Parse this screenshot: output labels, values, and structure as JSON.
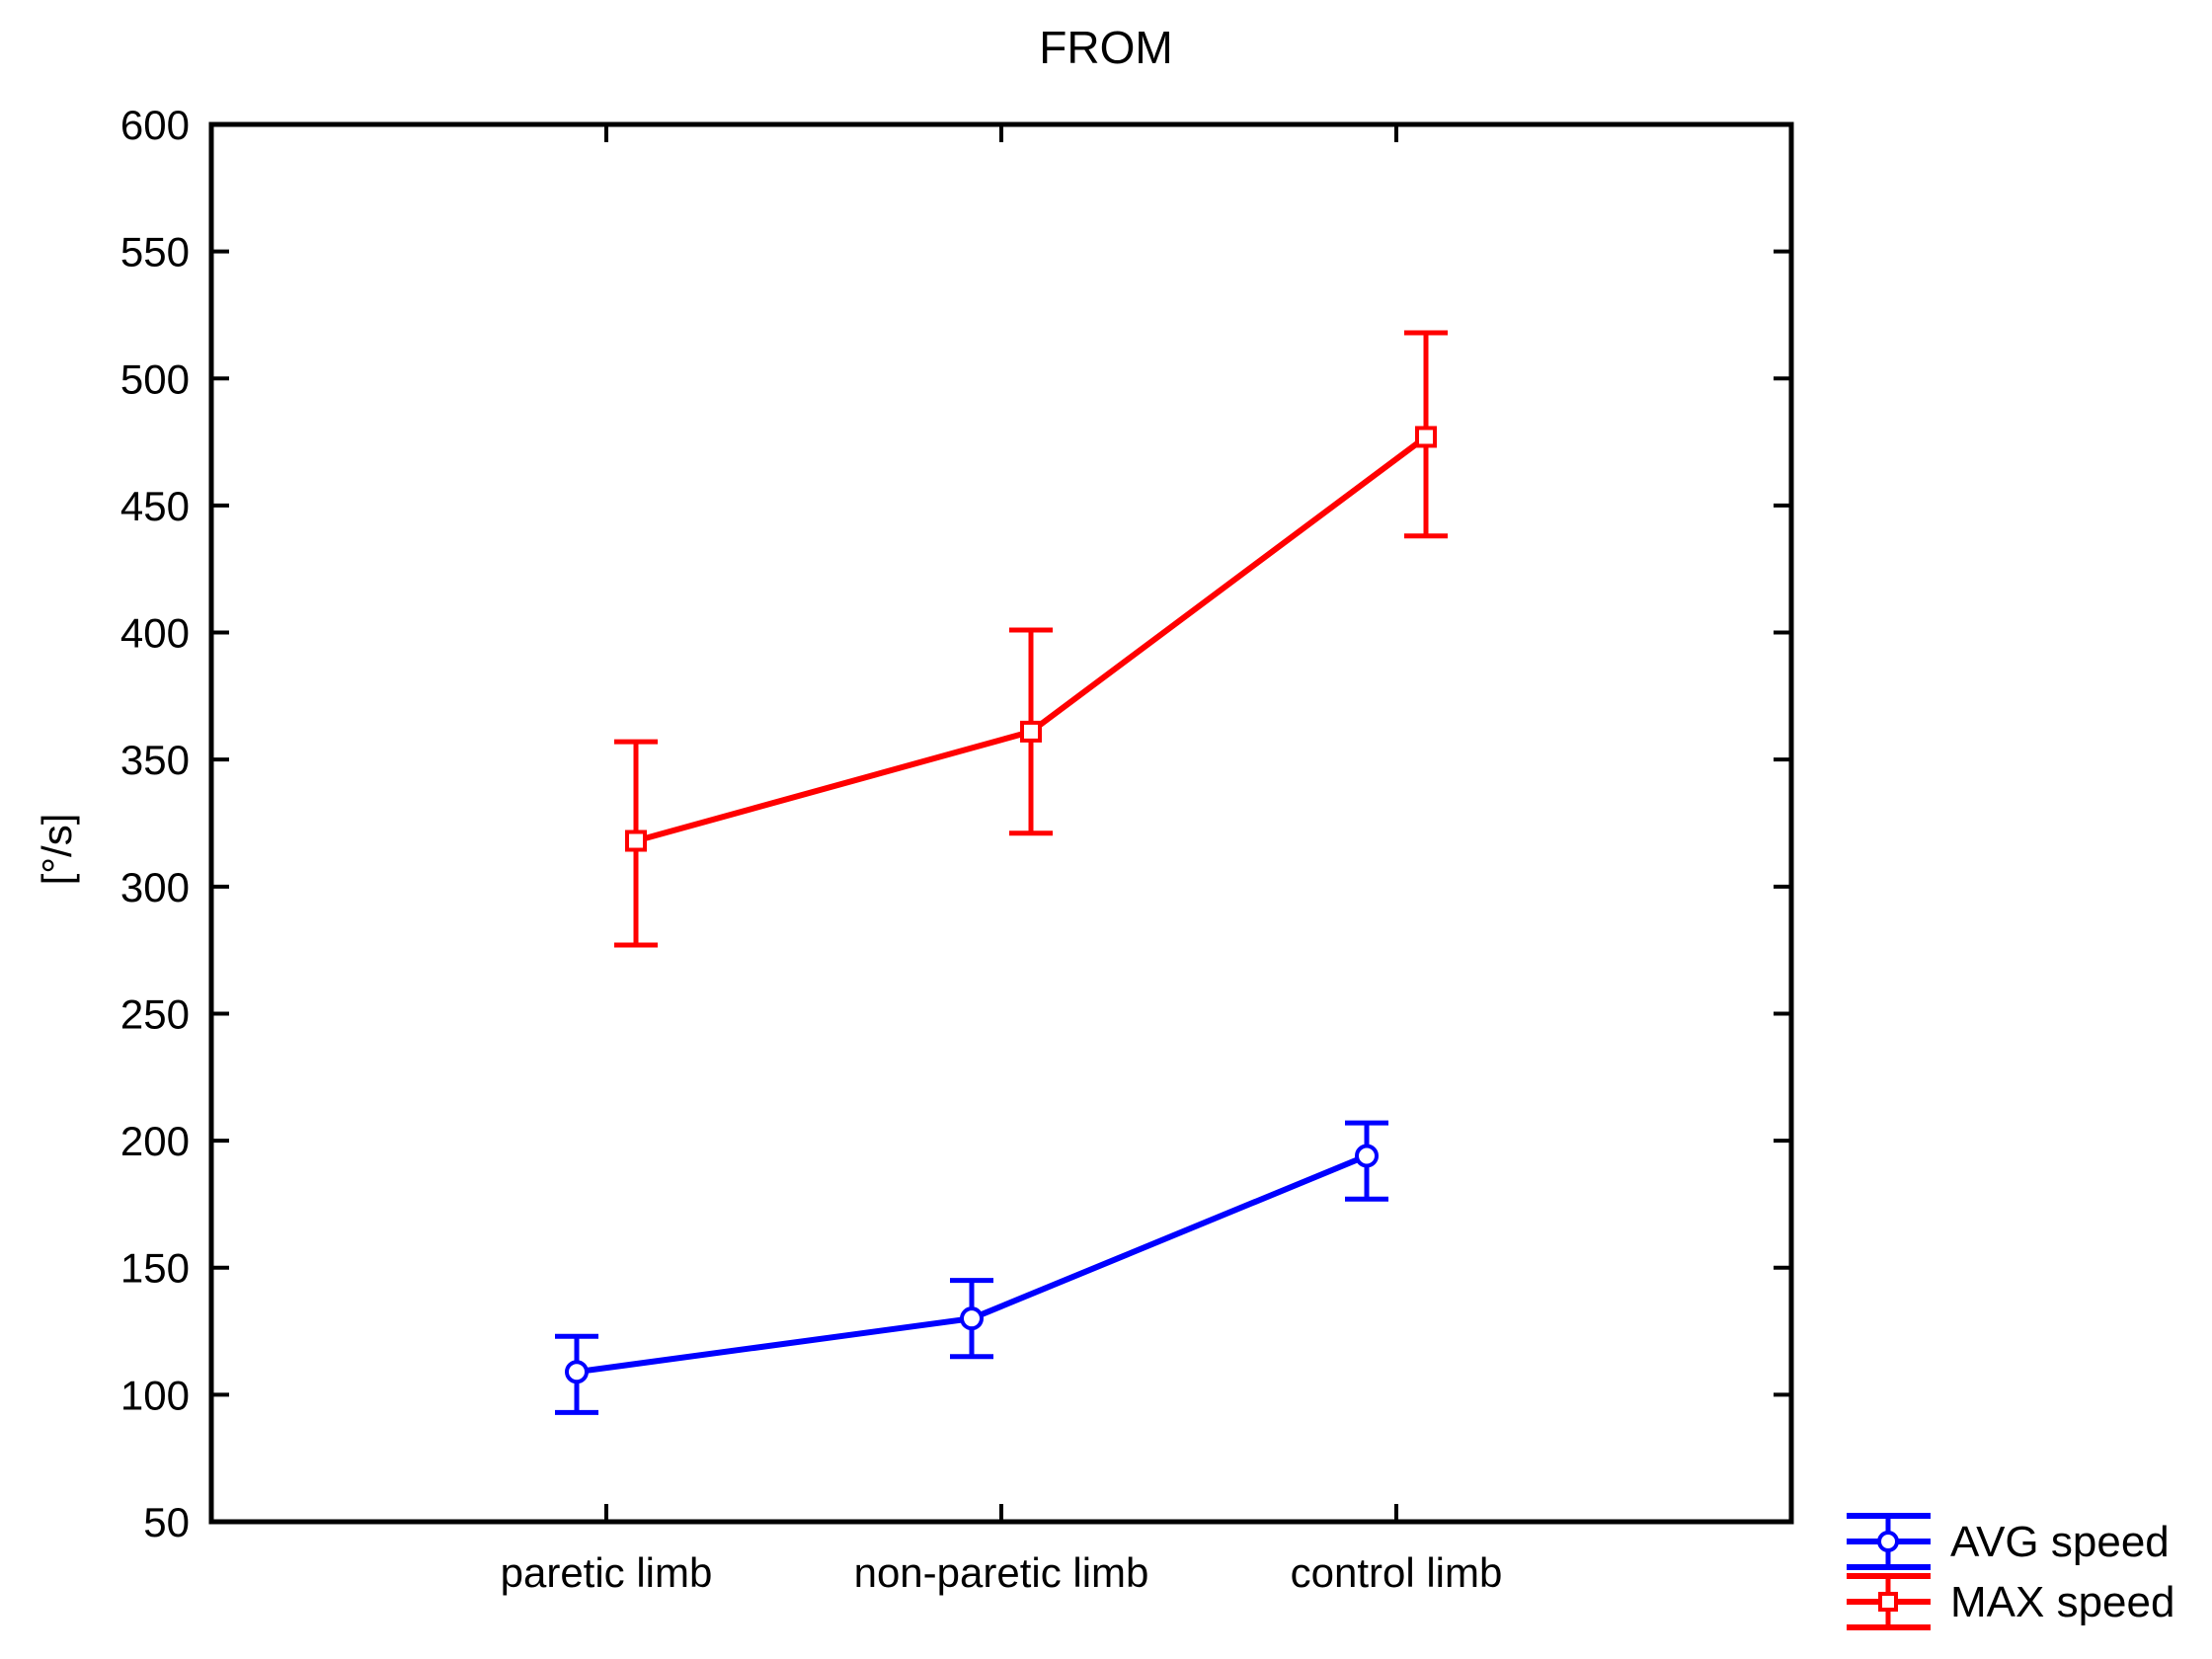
{
  "chart_data": {
    "type": "line",
    "title": "FROM",
    "xlabel": "",
    "ylabel": "[°/s]",
    "categories": [
      "paretic limb",
      "non-paretic limb",
      "control limb"
    ],
    "ylim": [
      50,
      600
    ],
    "yticks": [
      50,
      100,
      150,
      200,
      250,
      300,
      350,
      400,
      450,
      500,
      550,
      600
    ],
    "grid": false,
    "legend_position": "bottom-right, outside plot",
    "series": [
      {
        "name": "AVG speed",
        "color": "#0000ff",
        "marker": "circle",
        "values": [
          109,
          130,
          194
        ],
        "error_low": [
          93,
          115,
          177
        ],
        "error_high": [
          123,
          145,
          207
        ]
      },
      {
        "name": "MAX speed",
        "color": "#ff0000",
        "marker": "square",
        "values": [
          318,
          361,
          477
        ],
        "error_low": [
          277,
          321,
          438
        ],
        "error_high": [
          357,
          401,
          518
        ]
      }
    ]
  }
}
